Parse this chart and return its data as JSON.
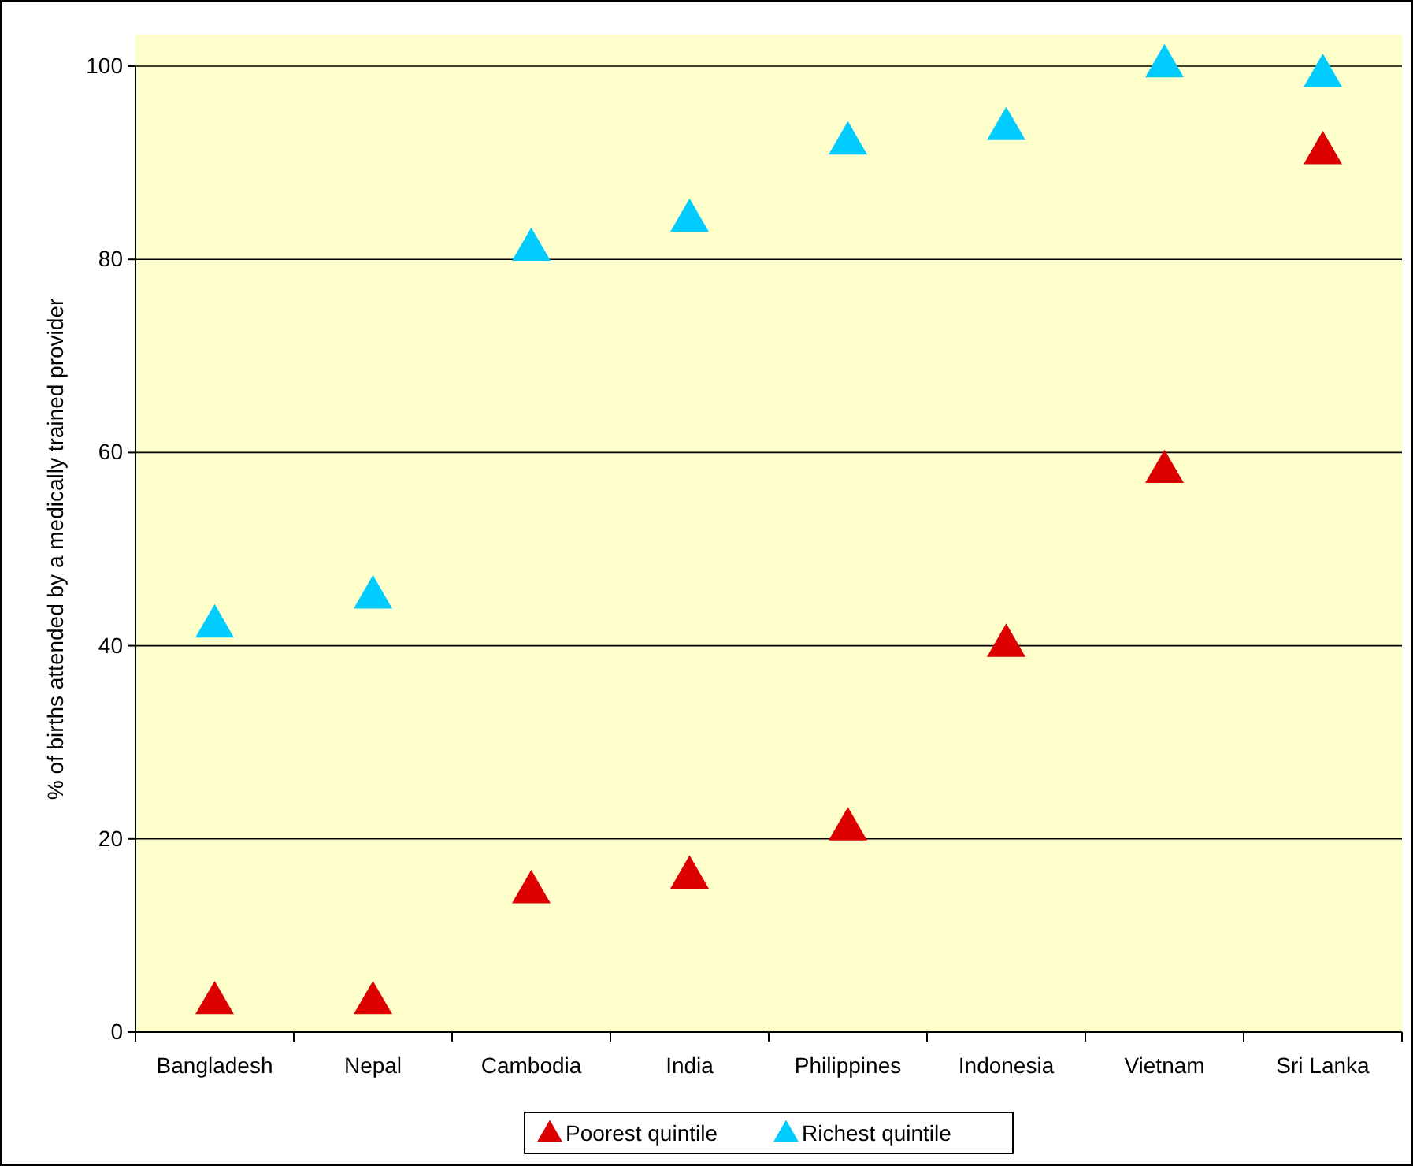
{
  "chart_data": {
    "type": "scatter",
    "ylabel": "% of births attended by a medically trained provider",
    "categories": [
      "Bangladesh",
      "Nepal",
      "Cambodia",
      "India",
      "Philippines",
      "Indonesia",
      "Vietnam",
      "Sri Lanka"
    ],
    "series": [
      {
        "name": "Poorest quintile",
        "color": "#dd0000",
        "values": [
          3,
          3,
          14.5,
          16,
          21,
          40,
          58,
          91
        ]
      },
      {
        "name": "Richest quintile",
        "color": "#00ccff",
        "values": [
          42,
          45,
          81,
          84,
          92,
          93.5,
          100,
          99
        ]
      }
    ],
    "ylim": [
      0,
      100
    ],
    "yticks": [
      0,
      20,
      40,
      60,
      80,
      100
    ],
    "grid": "y",
    "legend": "bottom",
    "marker": "triangle"
  }
}
